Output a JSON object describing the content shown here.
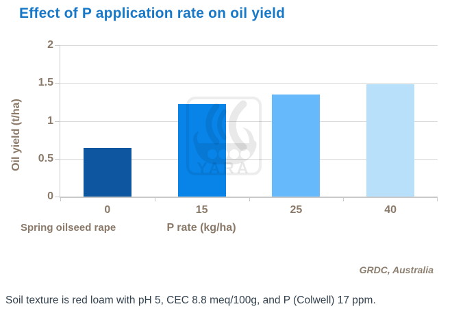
{
  "title": "Effect of P application rate on oil yield",
  "chart_data": {
    "type": "bar",
    "categories": [
      "0",
      "15",
      "25",
      "40"
    ],
    "values": [
      0.64,
      1.22,
      1.35,
      1.48
    ],
    "bar_colors": [
      "#0E56A0",
      "#0884E8",
      "#66B9FA",
      "#B9E0FB"
    ],
    "title": "Effect of P application rate on oil yield",
    "xlabel": "P rate (kg/ha)",
    "ylabel": "Oil yield (t/ha)",
    "group_label": "Spring oilseed rape",
    "ylim": [
      0,
      2
    ],
    "yticks": [
      "0",
      "0.5",
      "1",
      "1.5",
      "2"
    ],
    "grid": "horizontal",
    "legend": "none"
  },
  "watermark": {
    "text": "YARA"
  },
  "source": "GRDC, Australia",
  "caption": "Soil texture is red loam with pH 5, CEC 8.8 meq/100g, and P (Colwell) 17 ppm.",
  "colors": {
    "title_text": "#1878C8",
    "axis_text": "#8A7968",
    "gridline": "#DADADA",
    "axis_line": "#C9C9C9",
    "source_text": "#8C7F70",
    "caption_text": "#33424F"
  }
}
